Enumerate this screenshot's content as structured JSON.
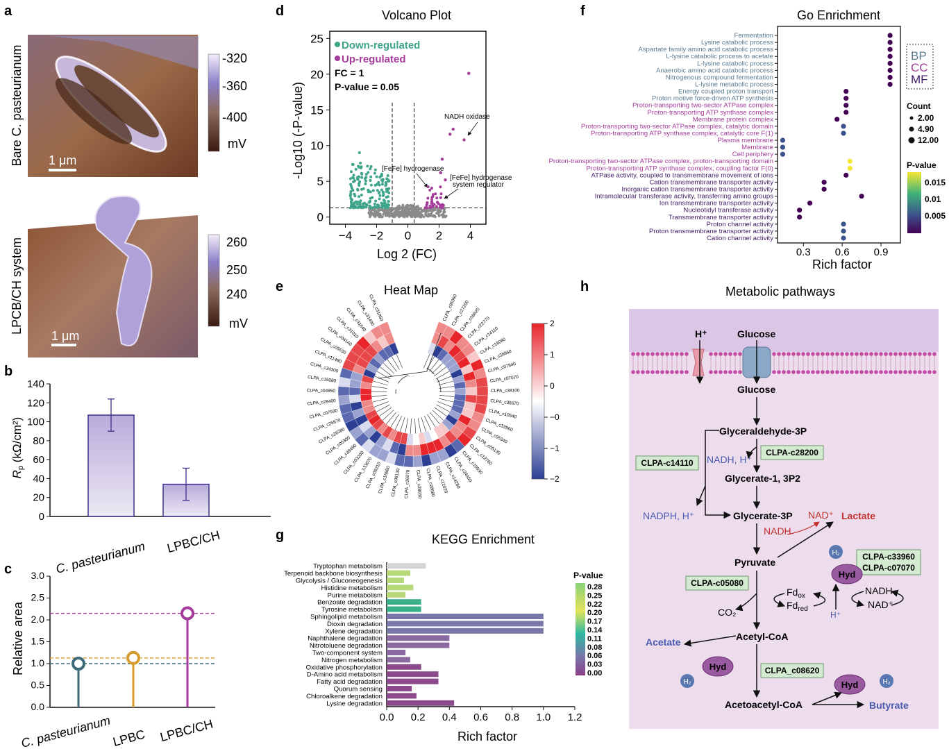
{
  "panel_letters": {
    "a": "a",
    "b": "b",
    "c": "c",
    "d": "d",
    "e": "e",
    "f": "f",
    "g": "g",
    "h": "h"
  },
  "panel_a": {
    "top_label": "Bare C. pasteurianum",
    "bottom_label": "LPCB/CH system",
    "scale_bar": "1 μm",
    "top_colorbar": [
      "-320",
      "-360",
      "-400",
      "mV"
    ],
    "bottom_colorbar": [
      "260",
      "250",
      "240",
      "mV"
    ]
  },
  "chart_data": [
    {
      "id": "b",
      "type": "bar",
      "categories": [
        "C. pasteurianum",
        "LPBC/CH"
      ],
      "values": [
        107,
        34
      ],
      "errors": [
        17,
        17
      ],
      "ylabel": "Rp (kΩ/cm²)",
      "ylim": [
        0,
        140
      ],
      "yticks": [
        "0",
        "20",
        "40",
        "60",
        "80",
        "100",
        "120",
        "140"
      ]
    },
    {
      "id": "c",
      "type": "scatter",
      "categories": [
        "C. pasteurianum",
        "LPBC",
        "LPBC/CH"
      ],
      "values": [
        1.0,
        1.13,
        2.15
      ],
      "colors": [
        "#3d6b7a",
        "#d79d2f",
        "#a43c9b"
      ],
      "ylabel": "Relative area",
      "ylim": [
        0,
        3.0
      ],
      "yticks": [
        "0.0",
        "0.5",
        "1.0",
        "1.5",
        "2.0",
        "2.5",
        "3.0"
      ]
    },
    {
      "id": "d",
      "type": "scatter",
      "title": "Volcano Plot",
      "xlabel": "Log 2 (FC)",
      "ylabel": "-Log10 (-P-value)",
      "xlim": [
        -5,
        5
      ],
      "ylim": [
        -1,
        26
      ],
      "xticks": [
        "-4",
        "-2",
        "0",
        "2",
        "4"
      ],
      "yticks": [
        "0",
        "5",
        "10",
        "15",
        "20",
        "25"
      ],
      "legend": [
        "Down-regulated",
        "Up-regulated"
      ],
      "fc_text": "FC = 1",
      "p_text": "P-value = 0.05",
      "annotations": [
        "NADH oxidase",
        "[FeFe] hydrogenase",
        "[FeFe] hydrogenase",
        "system regulator"
      ],
      "highlight_points": [
        [
          3.9,
          20.1
        ],
        [
          2.9,
          12.3
        ],
        [
          2.7,
          11.6
        ],
        [
          3.6,
          10.8
        ],
        [
          2.2,
          8.1
        ],
        [
          2.4,
          5.2
        ],
        [
          2.1,
          6.2
        ]
      ]
    },
    {
      "id": "e",
      "type": "heatmap",
      "title": "Heat Map",
      "colorbar_ticks": [
        "2",
        "1",
        "0",
        "-0",
        "-1",
        "-2"
      ],
      "rows": [
        "CLPA_c05060",
        "CLPA_c27200",
        "CLPA_c08620",
        "CLPA_c22770",
        "CLPA_c14110",
        "CLPA_c18080",
        "CLPA_c38960",
        "CLPA_c07840",
        "CLPA_c07070",
        "CLPA_c38100",
        "CLPA_c35670",
        "CLPA_c10540",
        "CLPA_c33960",
        "CLPA_c05340",
        "CLPA_c05130",
        "CLPA_c12760",
        "CLPA_c19930",
        "CLPA_c34450",
        "CLPA_c14280",
        "CLPA_c11020",
        "CLPA_c28680",
        "CLPA_c28650",
        "CLPA_c16070",
        "CLPA_c06130",
        "CLPA_c16880",
        "CLPA_c05210",
        "CLPA_c33070",
        "CLPA_c03200",
        "CLPA_c38490",
        "CLPA_c05300",
        "CLPA_c26280",
        "CLPA_c25870",
        "CLPA_c07930",
        "CLPA_c28400",
        "CLPA_c04950",
        "CLPA_c15080",
        "CLPA_c34300",
        "CLPA_c11480",
        "CLPA_c05530",
        "CLPA_c04140",
        "CLPA_c31010",
        "CLPA_c31640",
        "CLPA_c31490",
        "CLPA_c31850"
      ]
    },
    {
      "id": "f",
      "type": "scatter",
      "title": "Go Enrichment",
      "xlabel": "Rich factor",
      "xlim": [
        0.1,
        1.05
      ],
      "xticks": [
        "0.3",
        "0.6",
        "0.9"
      ],
      "legend_groups": [
        "BP",
        "CC",
        "MF"
      ],
      "size_legend_title": "Count",
      "size_legend": [
        "2.00",
        "4.90",
        "12.00"
      ],
      "color_legend_title": "P-value",
      "color_legend": [
        "0.015",
        "0.01",
        "0.005"
      ],
      "terms": [
        {
          "label": "Fermentation",
          "group": "BP",
          "x": 0.97,
          "p": 0.001
        },
        {
          "label": "Lysine catabolic process",
          "group": "BP",
          "x": 0.97,
          "p": 0.001
        },
        {
          "label": "Aspartate family amino acid catabolic process",
          "group": "BP",
          "x": 0.97,
          "p": 0.001
        },
        {
          "label": "L-lysine catabolic process to acetate",
          "group": "BP",
          "x": 0.97,
          "p": 0.001
        },
        {
          "label": "L-lysine catabolic process",
          "group": "BP",
          "x": 0.97,
          "p": 0.001
        },
        {
          "label": "Anaerobic amino acid catabolic process",
          "group": "BP",
          "x": 0.97,
          "p": 0.001
        },
        {
          "label": "Nitrogenous compound fermentation",
          "group": "BP",
          "x": 0.97,
          "p": 0.001
        },
        {
          "label": "L-lysine metabolic process",
          "group": "BP",
          "x": 0.97,
          "p": 0.001
        },
        {
          "label": "Energy coupled proton transport",
          "group": "BP",
          "x": 0.63,
          "p": 0.002
        },
        {
          "label": "Proton motive force-driven ATP synthesis",
          "group": "BP",
          "x": 0.63,
          "p": 0.002
        },
        {
          "label": "Proton-transporting two-sector ATPase complex",
          "group": "CC",
          "x": 0.63,
          "p": 0.002
        },
        {
          "label": "Proton-transporting ATP synthase complex",
          "group": "CC",
          "x": 0.63,
          "p": 0.002
        },
        {
          "label": "Membrane protein complex",
          "group": "CC",
          "x": 0.56,
          "p": 0.003
        },
        {
          "label": "Proton-transporting two-sector ATPase complex, catalytic domain",
          "group": "CC",
          "x": 0.61,
          "p": 0.006
        },
        {
          "label": "Proton-transporting ATP synthase complex, catalytic core F(1)",
          "group": "CC",
          "x": 0.61,
          "p": 0.006
        },
        {
          "label": "Plasma membrane",
          "group": "CC",
          "x": 0.14,
          "p": 0.005
        },
        {
          "label": "Membrane",
          "group": "CC",
          "x": 0.14,
          "p": 0.005
        },
        {
          "label": "Cell periphery",
          "group": "CC",
          "x": 0.14,
          "p": 0.005
        },
        {
          "label": "Proton-transporting two-sector ATPase complex, proton-transporting domain",
          "group": "CC",
          "x": 0.66,
          "p": 0.017
        },
        {
          "label": "Proton-transporting ATP synthase complex, coupling factor F(0)",
          "group": "CC",
          "x": 0.66,
          "p": 0.017
        },
        {
          "label": "ATPase activity, coupled to transmembrane movement of ions",
          "group": "MF",
          "x": 0.63,
          "p": 0.003
        },
        {
          "label": "Cation transmembrane transporter activity",
          "group": "MF",
          "x": 0.46,
          "p": 0.002
        },
        {
          "label": "Inorganic cation transmembrane transporter activity",
          "group": "MF",
          "x": 0.46,
          "p": 0.002
        },
        {
          "label": "Intramolecular transferase activity, transferring amino groups",
          "group": "MF",
          "x": 0.75,
          "p": 0.003
        },
        {
          "label": "Ion transmembrane transporter activity",
          "group": "MF",
          "x": 0.35,
          "p": 0.003
        },
        {
          "label": "Nucleotidyl transferase activity",
          "group": "MF",
          "x": 0.27,
          "p": 0.004
        },
        {
          "label": "Transmembrane transporter activity",
          "group": "MF",
          "x": 0.27,
          "p": 0.004
        },
        {
          "label": "Proton channel activity",
          "group": "MF",
          "x": 0.61,
          "p": 0.006
        },
        {
          "label": "Proton transmembrane transporter activity",
          "group": "MF",
          "x": 0.61,
          "p": 0.006
        },
        {
          "label": "Cation channel activity",
          "group": "MF",
          "x": 0.61,
          "p": 0.006
        }
      ]
    },
    {
      "id": "g",
      "type": "bar",
      "orientation": "horizontal",
      "title": "KEGG Enrichment",
      "xlabel": "Rich factor",
      "xlim": [
        0,
        1.2
      ],
      "xticks": [
        "0.0",
        "0.2",
        "0.4",
        "0.6",
        "0.8",
        "1.0",
        "1.2"
      ],
      "legend_title": "P-value",
      "legend_ticks": [
        "0.28",
        "0.25",
        "0.22",
        "0.20",
        "0.17",
        "0.14",
        "0.11",
        "0.08",
        "0.06",
        "0.03",
        "0.00"
      ],
      "categories": [
        "Tryptophan metabolism",
        "Terpenoid backbone biosynthesis",
        "Glycolysis / Gluconeogenesis",
        "Histidine metabolism",
        "Purine metabolism",
        "Benzoate degradation",
        "Tyrosine metabolism",
        "Sphingolipid metabolism",
        "Dioxin degradation",
        "Xylene degradation",
        "Naphthalene degradation",
        "Nitrotoluene degradation",
        "Two-component system",
        "Nitrogen metabolism",
        "Oxidative phosphorylation",
        "D-Amino acid metabolism",
        "Fatty acid degradation",
        "Quorum sensing",
        "Chloroalkene degradation",
        "Lysine degradation"
      ],
      "values": [
        0.25,
        0.15,
        0.11,
        0.17,
        0.12,
        0.22,
        0.22,
        1.0,
        1.0,
        1.0,
        0.4,
        0.4,
        0.12,
        0.15,
        0.22,
        0.33,
        0.33,
        0.16,
        0.19,
        0.43
      ],
      "pvalues": [
        0.28,
        0.22,
        0.22,
        0.22,
        0.2,
        0.14,
        0.14,
        0.09,
        0.09,
        0.09,
        0.05,
        0.05,
        0.04,
        0.04,
        0.03,
        0.02,
        0.02,
        0.02,
        0.01,
        0.01
      ]
    }
  ],
  "panel_h": {
    "title": "Metabolic pathways",
    "glucose_out": "Glucose",
    "glucose_in": "Glucose",
    "proton": "H⁺",
    "g3p": "Glyceraldehyde-3P",
    "nadh_h": "NADH, H⁺",
    "gene_28200": "CLPA-c28200",
    "gene_14110": "CLPA-c14110",
    "bpg": "Glycerate-1, 3P2",
    "nadph": "NADPH, H⁺",
    "g3": "Glycerate-3P",
    "nad_plus": "NAD⁺",
    "lactate": "Lactate",
    "nadh": "NADH",
    "pyruvate": "Pyruvate",
    "h2": "H₂",
    "gene_33960": "CLPA-c33960",
    "gene_07070": "CLPA-c07070",
    "hyd": "Hyd",
    "gene_05080": "CLPA-c05080",
    "fd_ox": "Fdox",
    "fd_red": "Fdred",
    "nadh2": "NADH",
    "nad2": "NAD⁺",
    "proton2": "H⁺",
    "co2": "CO₂",
    "acetyl": "Acetyl-CoA",
    "acetate": "Acetate",
    "gene_08620": "CLPA_c08620",
    "acetoacetyl": "Acetoacetyl-CoA",
    "butyrate": "Butyrate"
  },
  "colors": {
    "down": "#3fa58a",
    "up": "#a43c9b",
    "bar_b": "#c9bde0",
    "pathway_bg": "#ecdcec",
    "gene_box": "#d4ead1"
  }
}
